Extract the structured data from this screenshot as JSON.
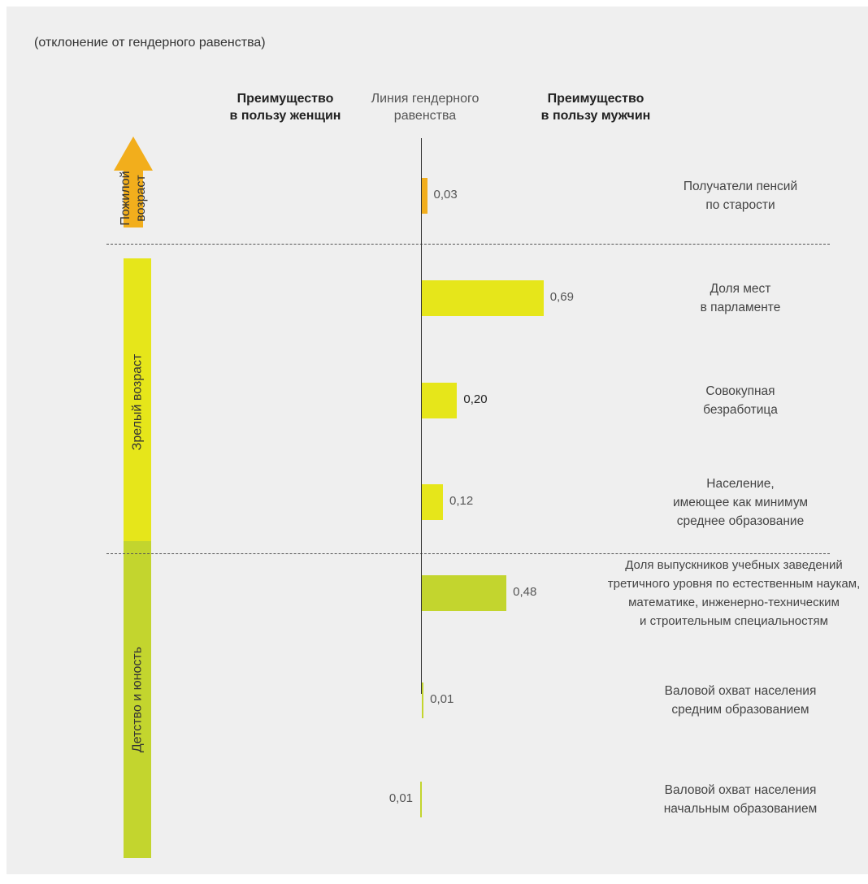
{
  "subtitle": "(отклонение от гендерного равенства)",
  "headers": {
    "women": [
      "Преимущество",
      "в пользу женщин"
    ],
    "parity": [
      "Линия гендерного",
      "равенства"
    ],
    "men": [
      "Преимущество",
      "в пользу мужчин"
    ]
  },
  "groups": [
    {
      "label_lines": [
        "Пожилой",
        "возраст"
      ],
      "color": "#f2ae1c",
      "arrow": true
    },
    {
      "label_lines": [
        "Зрелый возраст"
      ],
      "color": "#e6e61a",
      "arrow": false
    },
    {
      "label_lines": [
        "Детство и юность"
      ],
      "color": "#c3d52e",
      "arrow": false
    }
  ],
  "chart_data": {
    "type": "bar",
    "orientation": "horizontal",
    "baseline": 0,
    "xlabel": "",
    "ylabel": "",
    "categories": [
      "Получатели пенсий по старости",
      "Доля мест в парламенте",
      "Совокупная безработица",
      "Население, имеющее как минимум среднее образование",
      "Доля выпускников учебных заведений третичного уровня по естественным наукам, математике, инженерно-техническим и строительным специальностям",
      "Валовой охват населения средним образованием",
      "Валовой охват населения начальным образованием"
    ],
    "values": [
      0.03,
      0.69,
      0.2,
      0.12,
      0.48,
      0.01,
      -0.01
    ],
    "value_labels": [
      "0,03",
      "0,69",
      "0,20",
      "0,12",
      "0,48",
      "0,01",
      "0,01"
    ],
    "label_lines": [
      [
        "Получатели пенсий",
        "по старости"
      ],
      [
        "Доля мест",
        "в парламенте"
      ],
      [
        "Совокупная",
        "безработица"
      ],
      [
        "Население,",
        "имеющее как минимум",
        "среднее образование"
      ],
      [
        "Доля выпускников учебных заведений",
        "третичного уровня по естественным наукам,",
        "математике, инженерно-техническим",
        "и строительным специальностям"
      ],
      [
        "Валовой охват населения",
        "средним образованием"
      ],
      [
        "Валовой охват населения",
        "начальным образованием"
      ]
    ],
    "groups": [
      "Пожилой возраст",
      "Зрелый возраст",
      "Зрелый возраст",
      "Зрелый возраст",
      "Детство и юность",
      "Детство и юность",
      "Детство и юность"
    ],
    "colors": [
      "#f2ae1c",
      "#e6e61a",
      "#e6e61a",
      "#e6e61a",
      "#c3d52e",
      "#c3d52e",
      "#c3d52e"
    ]
  }
}
